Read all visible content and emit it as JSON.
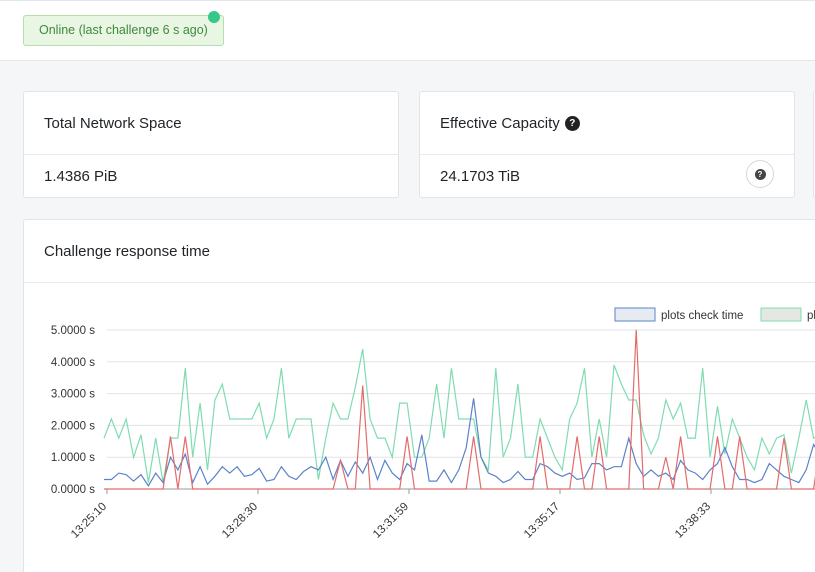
{
  "status": {
    "text": "Online (last challenge 6 s ago)"
  },
  "cards": {
    "network_space": {
      "title": "Total Network Space",
      "value": "1.4386 PiB"
    },
    "effective_capacity": {
      "title": "Effective Capacity",
      "value": "24.1703 TiB"
    }
  },
  "icons": {
    "question": "?"
  },
  "chart": {
    "title": "Challenge response time"
  },
  "chart_data": {
    "type": "line",
    "ylim": [
      0,
      5
    ],
    "y_ticks": [
      "0.0000 s",
      "1.0000 s",
      "2.0000 s",
      "3.0000 s",
      "4.0000 s",
      "5.0000 s"
    ],
    "x_tick_labels": [
      "13:25:10",
      "13:28:30",
      "13:31:59",
      "13:35:17",
      "13:38:33"
    ],
    "legend": [
      "plots check time",
      "pl"
    ],
    "colors": {
      "blue": "#5b83c9",
      "green": "#7fdcb1",
      "red": "#e56b6b"
    },
    "series": [
      {
        "name": "plots check time",
        "color": "#5b83c9",
        "values": [
          0.3,
          0.3,
          0.5,
          0.45,
          0.25,
          0.45,
          0.1,
          0.5,
          0.2,
          1.0,
          0.6,
          1.1,
          0.2,
          0.7,
          0.15,
          0.4,
          0.7,
          0.5,
          0.7,
          0.4,
          0.45,
          0.65,
          0.25,
          0.3,
          0.7,
          0.4,
          0.3,
          0.55,
          0.7,
          0.6,
          1.0,
          0.3,
          0.9,
          0.4,
          0.85,
          0.5,
          1.0,
          0.3,
          0.9,
          0.5,
          0.3,
          0.8,
          0.6,
          1.7,
          0.25,
          0.25,
          0.6,
          0.2,
          0.6,
          1.3,
          2.85,
          1.0,
          0.5,
          0.4,
          0.2,
          0.3,
          0.55,
          0.3,
          0.3,
          0.8,
          0.7,
          0.5,
          0.4,
          0.5,
          0.3,
          0.35,
          0.8,
          0.8,
          0.6,
          0.7,
          0.7,
          1.6,
          0.8,
          0.4,
          0.6,
          0.4,
          0.5,
          0.3,
          0.9,
          0.6,
          0.5,
          0.3,
          0.6,
          0.8,
          1.3,
          0.7,
          0.3,
          0.3,
          0.2,
          0.3,
          0.8,
          0.6,
          0.4,
          0.3,
          0.2,
          0.6,
          1.4,
          1.0
        ]
      },
      {
        "name": "pl",
        "color": "#7fdcb1",
        "values": [
          1.6,
          2.2,
          1.6,
          2.2,
          1.0,
          1.7,
          0.2,
          1.6,
          0.2,
          1.6,
          1.6,
          3.8,
          1.0,
          2.7,
          0.6,
          2.8,
          3.3,
          2.2,
          2.2,
          2.2,
          2.2,
          2.7,
          1.6,
          2.2,
          3.8,
          1.6,
          2.2,
          2.2,
          2.2,
          0.3,
          1.6,
          2.7,
          2.2,
          2.2,
          3.2,
          4.4,
          2.2,
          1.6,
          1.6,
          1.0,
          2.7,
          2.7,
          1.0,
          1.0,
          1.6,
          3.3,
          1.6,
          3.8,
          2.2,
          2.2,
          2.2,
          1.0,
          0.6,
          3.8,
          1.0,
          1.6,
          3.3,
          1.0,
          1.0,
          2.2,
          1.6,
          1.0,
          0.6,
          2.2,
          2.7,
          3.8,
          1.0,
          2.2,
          1.0,
          3.9,
          3.3,
          2.8,
          2.8,
          1.7,
          1.1,
          1.6,
          2.8,
          2.2,
          2.7,
          1.6,
          1.6,
          3.8,
          1.0,
          2.6,
          1.1,
          2.2,
          1.6,
          1.0,
          0.6,
          1.6,
          1.1,
          1.6,
          1.7,
          0.5,
          1.6,
          2.8,
          1.6,
          1.7
        ]
      },
      {
        "name": "",
        "color": "#e56b6b",
        "values": [
          0,
          0,
          0,
          0,
          0,
          0,
          0,
          0,
          0,
          1.65,
          0,
          1.65,
          0,
          0,
          0,
          0,
          0,
          0,
          0,
          0,
          0,
          0,
          0,
          0,
          0,
          0,
          0,
          0,
          0,
          0,
          0,
          0,
          0.9,
          0,
          0,
          3.25,
          0,
          0,
          0,
          0,
          0,
          1.65,
          0,
          0,
          0,
          0,
          0,
          0,
          0,
          0,
          1.65,
          0,
          0,
          0,
          0,
          0,
          0,
          0,
          0,
          1.65,
          0,
          0,
          0,
          0,
          1.65,
          0,
          0,
          1.65,
          0,
          0,
          0,
          0,
          5.0,
          0,
          0,
          0,
          1.0,
          0,
          1.65,
          0,
          0,
          0,
          0,
          1.65,
          0,
          0,
          1.65,
          0,
          0,
          0,
          0,
          0,
          1.6,
          0,
          0,
          0,
          0,
          1.6
        ]
      }
    ]
  }
}
